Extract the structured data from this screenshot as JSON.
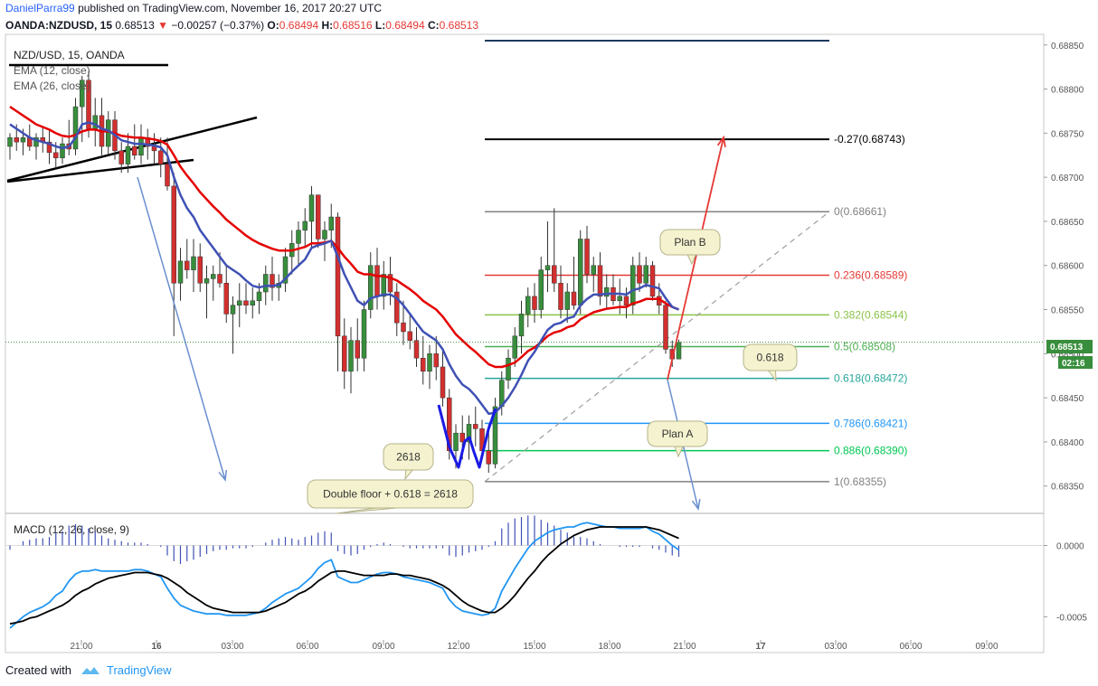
{
  "header": {
    "author": "DanielParra99",
    "published_text": "published on TradingView.com, November 16, 2017 20:27 UTC",
    "symbol": "OANDA:NZDUSD, 15",
    "last": "0.68513",
    "change_arrow": "▼",
    "change": "−0.00257 (−0.37%)",
    "o_label": "O:",
    "o": "0.68494",
    "h_label": "H:",
    "h": "0.68516",
    "l_label": "L:",
    "l": "0.68494",
    "c_label": "C:",
    "c": "0.68513"
  },
  "legend": {
    "title": "NZD/USD, 15, OANDA",
    "ema1": "EMA (12, close)",
    "ema2": "EMA (26, close)"
  },
  "macd_legend": "MACD (12, 26, close, 9)",
  "footer": {
    "created_with": "Created with",
    "brand": "TradingView"
  },
  "price_tag": "0.68513",
  "timer_tag": "02:16",
  "colors": {
    "up": "#388e3c",
    "down": "#d32f2f",
    "ema12": "#3f51b5",
    "ema26": "#e50000",
    "macd": "#2196f3",
    "signal": "#000000",
    "hist": "#3f51b5",
    "accent": "#2962ff"
  },
  "chart_data": [
    {
      "type": "candlestick",
      "title": "NZD/USD, 15, OANDA",
      "ylim": [
        0.6832,
        0.6886
      ],
      "y_ticks": [
        "0.68850",
        "0.68800",
        "0.68750",
        "0.68700",
        "0.68650",
        "0.68600",
        "0.68550",
        "0.68500",
        "0.68450",
        "0.68400",
        "0.68350"
      ],
      "x_ticks": [
        "21:00",
        "16",
        "03:00",
        "06:00",
        "09:00",
        "12:00",
        "15:00",
        "18:00",
        "21:00",
        "17",
        "03:00",
        "06:00",
        "09:00"
      ],
      "candles": [
        [
          0.68735,
          0.6875,
          0.6872,
          0.68745
        ],
        [
          0.68745,
          0.6876,
          0.6873,
          0.6874
        ],
        [
          0.6874,
          0.68755,
          0.68725,
          0.68745
        ],
        [
          0.68745,
          0.6876,
          0.6873,
          0.68735
        ],
        [
          0.68735,
          0.6875,
          0.6872,
          0.68745
        ],
        [
          0.68745,
          0.68758,
          0.68728,
          0.6874
        ],
        [
          0.6874,
          0.68755,
          0.68715,
          0.68728
        ],
        [
          0.68728,
          0.6874,
          0.6871,
          0.68722
        ],
        [
          0.68722,
          0.68745,
          0.68715,
          0.68738
        ],
        [
          0.68738,
          0.68765,
          0.68725,
          0.68732
        ],
        [
          0.68732,
          0.6879,
          0.68725,
          0.6878
        ],
        [
          0.6878,
          0.68815,
          0.6874,
          0.6881
        ],
        [
          0.6881,
          0.6882,
          0.68745,
          0.68755
        ],
        [
          0.68755,
          0.6879,
          0.68735,
          0.6877
        ],
        [
          0.6877,
          0.6879,
          0.68725,
          0.68735
        ],
        [
          0.68735,
          0.68775,
          0.68725,
          0.68765
        ],
        [
          0.68765,
          0.68775,
          0.6872,
          0.6873
        ],
        [
          0.6873,
          0.6874,
          0.68705,
          0.68715
        ],
        [
          0.68715,
          0.6875,
          0.68705,
          0.68735
        ],
        [
          0.68735,
          0.6876,
          0.6872,
          0.68725
        ],
        [
          0.68725,
          0.6876,
          0.68715,
          0.68745
        ],
        [
          0.68745,
          0.68755,
          0.6872,
          0.68735
        ],
        [
          0.68735,
          0.6875,
          0.68715,
          0.6873
        ],
        [
          0.6873,
          0.68745,
          0.687,
          0.68715
        ],
        [
          0.68715,
          0.68745,
          0.68685,
          0.6869
        ],
        [
          0.6869,
          0.68705,
          0.6852,
          0.6858
        ],
        [
          0.6858,
          0.6862,
          0.6856,
          0.68605
        ],
        [
          0.68605,
          0.6863,
          0.68585,
          0.68595
        ],
        [
          0.68595,
          0.6863,
          0.6857,
          0.6861
        ],
        [
          0.6861,
          0.68625,
          0.6857,
          0.6858
        ],
        [
          0.6858,
          0.686,
          0.6854,
          0.68585
        ],
        [
          0.68585,
          0.686,
          0.6856,
          0.6859
        ],
        [
          0.6859,
          0.68615,
          0.68575,
          0.6858
        ],
        [
          0.6858,
          0.686,
          0.68535,
          0.68545
        ],
        [
          0.68545,
          0.68565,
          0.685,
          0.68555
        ],
        [
          0.68555,
          0.6858,
          0.6853,
          0.6856
        ],
        [
          0.6856,
          0.6858,
          0.68545,
          0.68555
        ],
        [
          0.68555,
          0.68575,
          0.6854,
          0.6856
        ],
        [
          0.6856,
          0.6858,
          0.68545,
          0.6857
        ],
        [
          0.6857,
          0.686,
          0.68555,
          0.6859
        ],
        [
          0.6859,
          0.6861,
          0.6856,
          0.68575
        ],
        [
          0.68575,
          0.6859,
          0.6856,
          0.6858
        ],
        [
          0.6858,
          0.6862,
          0.6857,
          0.6861
        ],
        [
          0.6861,
          0.6864,
          0.6859,
          0.68625
        ],
        [
          0.68625,
          0.6865,
          0.686,
          0.6864
        ],
        [
          0.6864,
          0.68665,
          0.6862,
          0.6865
        ],
        [
          0.6865,
          0.6869,
          0.6862,
          0.6868
        ],
        [
          0.6868,
          0.6868,
          0.6862,
          0.6863
        ],
        [
          0.6863,
          0.6865,
          0.68605,
          0.6864
        ],
        [
          0.6864,
          0.6867,
          0.6862,
          0.68655
        ],
        [
          0.68655,
          0.6866,
          0.6848,
          0.6852
        ],
        [
          0.6852,
          0.6854,
          0.6846,
          0.6848
        ],
        [
          0.6848,
          0.6853,
          0.68455,
          0.68515
        ],
        [
          0.68515,
          0.6854,
          0.6848,
          0.68495
        ],
        [
          0.68495,
          0.6856,
          0.6848,
          0.6855
        ],
        [
          0.6855,
          0.68615,
          0.6854,
          0.686
        ],
        [
          0.686,
          0.6862,
          0.6855,
          0.68565
        ],
        [
          0.68565,
          0.68605,
          0.6855,
          0.6859
        ],
        [
          0.6859,
          0.6861,
          0.68555,
          0.6857
        ],
        [
          0.6857,
          0.6858,
          0.6852,
          0.68535
        ],
        [
          0.68535,
          0.6856,
          0.6851,
          0.68525
        ],
        [
          0.68525,
          0.68545,
          0.68505,
          0.68515
        ],
        [
          0.68515,
          0.6853,
          0.68485,
          0.68495
        ],
        [
          0.68495,
          0.6852,
          0.68465,
          0.6848
        ],
        [
          0.6848,
          0.6851,
          0.6846,
          0.685
        ],
        [
          0.685,
          0.6852,
          0.6847,
          0.68485
        ],
        [
          0.68485,
          0.68505,
          0.6844,
          0.6845
        ],
        [
          0.6845,
          0.6846,
          0.6838,
          0.6839
        ],
        [
          0.6839,
          0.6842,
          0.6837,
          0.6841
        ],
        [
          0.6841,
          0.6843,
          0.6838,
          0.684
        ],
        [
          0.684,
          0.6843,
          0.6838,
          0.6842
        ],
        [
          0.6842,
          0.6844,
          0.68395,
          0.68415
        ],
        [
          0.68415,
          0.68425,
          0.6838,
          0.6839
        ],
        [
          0.6839,
          0.6842,
          0.68365,
          0.68375
        ],
        [
          0.68375,
          0.6845,
          0.6837,
          0.6844
        ],
        [
          0.6844,
          0.6848,
          0.6843,
          0.6847
        ],
        [
          0.6847,
          0.68505,
          0.6846,
          0.68495
        ],
        [
          0.68495,
          0.6853,
          0.68485,
          0.6852
        ],
        [
          0.6852,
          0.6856,
          0.685,
          0.68545
        ],
        [
          0.68545,
          0.68575,
          0.6853,
          0.68565
        ],
        [
          0.68565,
          0.6858,
          0.68535,
          0.6855
        ],
        [
          0.6855,
          0.6861,
          0.6854,
          0.68595
        ],
        [
          0.68595,
          0.6865,
          0.6857,
          0.686
        ],
        [
          0.686,
          0.68665,
          0.6857,
          0.6858
        ],
        [
          0.6858,
          0.686,
          0.6854,
          0.6855
        ],
        [
          0.6855,
          0.6858,
          0.68535,
          0.6857
        ],
        [
          0.6857,
          0.6861,
          0.6855,
          0.68555
        ],
        [
          0.68555,
          0.6864,
          0.68545,
          0.6863
        ],
        [
          0.6863,
          0.68645,
          0.6858,
          0.6859
        ],
        [
          0.6859,
          0.6861,
          0.6857,
          0.686
        ],
        [
          0.686,
          0.68615,
          0.68555,
          0.68565
        ],
        [
          0.68565,
          0.6859,
          0.6855,
          0.68575
        ],
        [
          0.68575,
          0.6859,
          0.68555,
          0.6856
        ],
        [
          0.6856,
          0.68585,
          0.68545,
          0.68565
        ],
        [
          0.68565,
          0.68575,
          0.6854,
          0.68555
        ],
        [
          0.68555,
          0.6861,
          0.68545,
          0.686
        ],
        [
          0.686,
          0.68615,
          0.6857,
          0.6858
        ],
        [
          0.6858,
          0.6861,
          0.68575,
          0.686
        ],
        [
          0.686,
          0.68605,
          0.6856,
          0.68565
        ],
        [
          0.68565,
          0.6858,
          0.68545,
          0.68555
        ],
        [
          0.68555,
          0.6856,
          0.685,
          0.68505
        ],
        [
          0.68505,
          0.68515,
          0.68485,
          0.68494
        ],
        [
          0.68494,
          0.68516,
          0.68494,
          0.68513
        ]
      ],
      "ema12": [
        0.6876,
        0.68755,
        0.6875,
        0.68745,
        0.68742,
        0.6874,
        0.68738,
        0.68735,
        0.68733,
        0.68735,
        0.68745,
        0.6876,
        0.68762,
        0.6876,
        0.68755,
        0.68753,
        0.68748,
        0.68742,
        0.6874,
        0.68738,
        0.68738,
        0.68737,
        0.68736,
        0.68734,
        0.68725,
        0.687,
        0.6868,
        0.68665,
        0.68655,
        0.6864,
        0.6863,
        0.6862,
        0.6861,
        0.686,
        0.68595,
        0.6859,
        0.68583,
        0.68577,
        0.68575,
        0.68577,
        0.68577,
        0.68578,
        0.68585,
        0.68593,
        0.686,
        0.68607,
        0.6862,
        0.68623,
        0.68625,
        0.68628,
        0.6861,
        0.6859,
        0.68575,
        0.6856,
        0.68555,
        0.68563,
        0.68565,
        0.68567,
        0.68567,
        0.68563,
        0.68555,
        0.68545,
        0.68535,
        0.68525,
        0.6852,
        0.68515,
        0.68505,
        0.68488,
        0.68475,
        0.68465,
        0.6846,
        0.68452,
        0.68442,
        0.68432,
        0.68433,
        0.68441,
        0.6845,
        0.68462,
        0.68476,
        0.68492,
        0.68502,
        0.68515,
        0.68527,
        0.68533,
        0.68535,
        0.6854,
        0.68542,
        0.68555,
        0.68562,
        0.68567,
        0.68567,
        0.68568,
        0.68568,
        0.68568,
        0.68567,
        0.68572,
        0.68574,
        0.68578,
        0.68576,
        0.68574,
        0.68563,
        0.68553,
        0.6855
      ],
      "ema26": [
        0.6878,
        0.68775,
        0.6877,
        0.68765,
        0.6876,
        0.68757,
        0.68754,
        0.6875,
        0.68747,
        0.68746,
        0.68748,
        0.68752,
        0.68754,
        0.68754,
        0.68752,
        0.68752,
        0.6875,
        0.68747,
        0.68746,
        0.68745,
        0.68745,
        0.68744,
        0.68743,
        0.68741,
        0.68737,
        0.68725,
        0.68712,
        0.68702,
        0.68693,
        0.68683,
        0.68675,
        0.68667,
        0.6866,
        0.68652,
        0.68646,
        0.6864,
        0.68634,
        0.68629,
        0.68625,
        0.68622,
        0.68619,
        0.68617,
        0.68617,
        0.68617,
        0.68619,
        0.68621,
        0.68625,
        0.68625,
        0.68626,
        0.68628,
        0.6862,
        0.6861,
        0.68602,
        0.68593,
        0.6859,
        0.6859,
        0.68588,
        0.68588,
        0.68586,
        0.68583,
        0.68578,
        0.68573,
        0.68567,
        0.6856,
        0.68555,
        0.6855,
        0.68542,
        0.68532,
        0.68522,
        0.68515,
        0.68508,
        0.68502,
        0.68495,
        0.68488,
        0.68485,
        0.68485,
        0.68487,
        0.6849,
        0.68496,
        0.68503,
        0.68507,
        0.68513,
        0.6852,
        0.68524,
        0.68526,
        0.6853,
        0.68532,
        0.68539,
        0.68543,
        0.68547,
        0.68549,
        0.68551,
        0.68552,
        0.68553,
        0.68553,
        0.68557,
        0.68559,
        0.68562,
        0.68562,
        0.68562,
        0.68557,
        0.68553,
        0.6855
      ],
      "fib_levels": [
        {
          "label": "-0.27(0.68743)",
          "value": 0.68743,
          "color": "#000000"
        },
        {
          "label": "0(0.68661)",
          "value": 0.68661,
          "color": "#808080"
        },
        {
          "label": "0.236(0.68589)",
          "value": 0.68589,
          "color": "#e53935"
        },
        {
          "label": "0.382(0.68544)",
          "value": 0.68544,
          "color": "#8bc34a"
        },
        {
          "label": "0.5(0.68508)",
          "value": 0.68508,
          "color": "#4caf50"
        },
        {
          "label": "0.618(0.68472)",
          "value": 0.68472,
          "color": "#26a69a"
        },
        {
          "label": "0.786(0.68421)",
          "value": 0.68421,
          "color": "#2196f3"
        },
        {
          "label": "0.886(0.68390)",
          "value": 0.6839,
          "color": "#00c853"
        },
        {
          "label": "1(0.68355)",
          "value": 0.68355,
          "color": "#808080"
        }
      ],
      "annotations": [
        "Plan B",
        "0.618",
        "Plan A",
        "2618",
        "Double floor + 0.618 = 2618"
      ]
    },
    {
      "type": "line",
      "title": "MACD (12, 26, close, 9)",
      "ylim": [
        -0.00065,
        0.0002
      ],
      "y_ticks": [
        "0.0000",
        "-0.0005"
      ],
      "macd": [
        -0.00058,
        -0.00054,
        -0.0005,
        -0.00047,
        -0.00045,
        -0.00043,
        -0.0004,
        -0.00035,
        -0.00032,
        -0.00025,
        -0.0002,
        -0.00018,
        -0.00018,
        -0.00017,
        -0.00018,
        -0.00018,
        -0.00018,
        -0.00018,
        -0.00018,
        -0.00017,
        -0.00017,
        -0.00018,
        -0.0002,
        -0.00022,
        -0.0003,
        -0.00037,
        -0.00042,
        -0.00044,
        -0.00046,
        -0.00047,
        -0.00048,
        -0.00048,
        -0.00048,
        -0.00049,
        -0.00049,
        -0.00049,
        -0.00049,
        -0.00048,
        -0.00047,
        -0.00044,
        -0.0004,
        -0.00037,
        -0.00034,
        -0.00032,
        -0.0003,
        -0.00026,
        -0.00022,
        -0.00016,
        -0.00012,
        -0.0001,
        -0.00022,
        -0.00024,
        -0.00026,
        -0.00026,
        -0.00024,
        -0.00022,
        -0.0002,
        -0.00019,
        -0.00019,
        -0.0002,
        -0.00022,
        -0.00023,
        -0.00024,
        -0.00025,
        -0.00026,
        -0.00028,
        -0.0003,
        -0.00038,
        -0.00043,
        -0.00046,
        -0.00047,
        -0.00048,
        -0.00049,
        -0.00048,
        -0.00044,
        -0.00032,
        -0.00024,
        -0.00016,
        -9e-05,
        -2e-05,
        3e-05,
        6e-05,
        9e-05,
        0.00011,
        0.00012,
        0.00013,
        0.00013,
        0.00015,
        0.00016,
        0.00015,
        0.00014,
        0.00013,
        0.00013,
        0.00012,
        0.00012,
        0.00012,
        0.00012,
        0.00013,
        0.0001,
        8e-05,
        4e-05,
        0.0,
        -3e-05
      ],
      "signal": [
        -0.00055,
        -0.00054,
        -0.00053,
        -0.00051,
        -0.0005,
        -0.00048,
        -0.00046,
        -0.00044,
        -0.00042,
        -0.00039,
        -0.00035,
        -0.00032,
        -0.0003,
        -0.00027,
        -0.00025,
        -0.00023,
        -0.00022,
        -0.00021,
        -0.0002,
        -0.00019,
        -0.00019,
        -0.00019,
        -0.0002,
        -0.00021,
        -0.00023,
        -0.00026,
        -0.00029,
        -0.00033,
        -0.00036,
        -0.00039,
        -0.00042,
        -0.00044,
        -0.00045,
        -0.00046,
        -0.00047,
        -0.00047,
        -0.00047,
        -0.00047,
        -0.00047,
        -0.00046,
        -0.00044,
        -0.00042,
        -0.0004,
        -0.00037,
        -0.00034,
        -0.00032,
        -0.00029,
        -0.00025,
        -0.00022,
        -0.00019,
        -0.00018,
        -0.00018,
        -0.00019,
        -0.0002,
        -0.00021,
        -0.00021,
        -0.00021,
        -0.00021,
        -0.0002,
        -0.0002,
        -0.00021,
        -0.00021,
        -0.00022,
        -0.00023,
        -0.00024,
        -0.00026,
        -0.00028,
        -0.00031,
        -0.00035,
        -0.00039,
        -0.00042,
        -0.00044,
        -0.00046,
        -0.00047,
        -0.00047,
        -0.00044,
        -0.0004,
        -0.00035,
        -0.00029,
        -0.00023,
        -0.00018,
        -0.00012,
        -7e-05,
        -3e-05,
        1e-05,
        4e-05,
        7e-05,
        9e-05,
        0.00011,
        0.00012,
        0.00013,
        0.00013,
        0.00013,
        0.00013,
        0.00013,
        0.00013,
        0.00013,
        0.00013,
        0.00012,
        0.00011,
        9e-05,
        7e-05,
        5e-05
      ]
    }
  ]
}
